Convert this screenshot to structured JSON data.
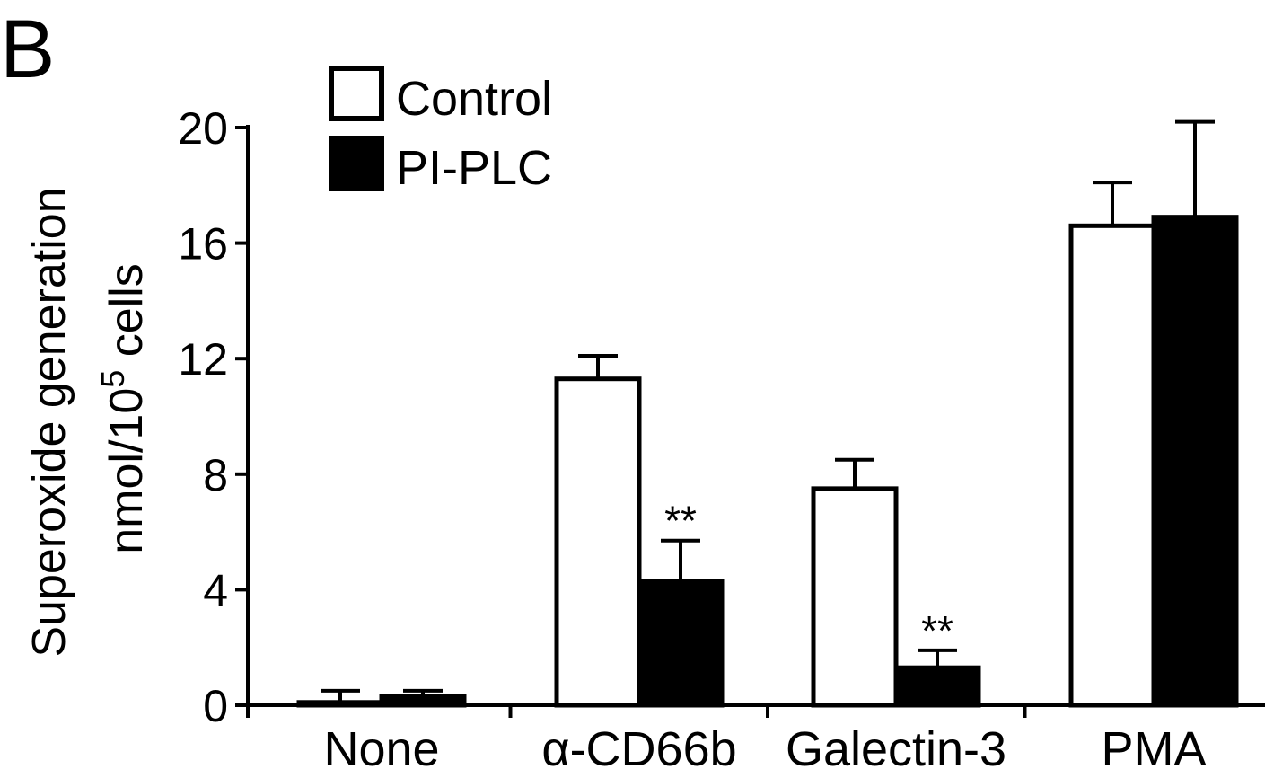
{
  "panel_label": "B",
  "chart_data": {
    "type": "bar",
    "ylabel_line1": "Superoxide generation",
    "ylabel_line2_prefix": "nmol/10",
    "ylabel_line2_sup": "5",
    "ylabel_line2_suffix": " cells",
    "ylim": [
      0,
      20
    ],
    "yticks": [
      "0",
      "4",
      "8",
      "12",
      "16",
      "20"
    ],
    "categories": [
      "None",
      "α-CD66b",
      "Galectin-3",
      "PMA"
    ],
    "series": [
      {
        "name": "Control",
        "color": "#ffffff",
        "values": [
          0.1,
          11.3,
          7.5,
          16.6
        ],
        "errors": [
          0.4,
          0.8,
          1.0,
          1.5
        ]
      },
      {
        "name": "PI-PLC",
        "color": "#000000",
        "values": [
          0.3,
          4.3,
          1.3,
          16.9
        ],
        "errors": [
          0.2,
          1.4,
          0.6,
          3.3
        ]
      }
    ],
    "significance": [
      "",
      "**",
      "**",
      ""
    ],
    "legend_position": "top-left"
  }
}
